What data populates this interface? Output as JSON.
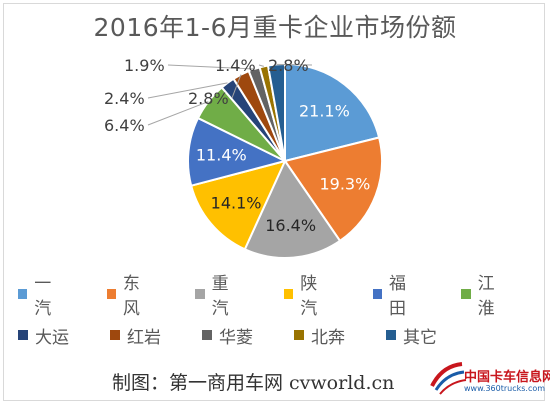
{
  "chart_data": {
    "type": "pie",
    "title": "2016年1-6月重卡企业市场份额",
    "categories": [
      "一汽",
      "东风",
      "重汽",
      "陕汽",
      "福田",
      "江淮",
      "大运",
      "红岩",
      "华菱",
      "北奔",
      "其它"
    ],
    "values": [
      21.1,
      19.3,
      16.4,
      14.1,
      11.4,
      6.4,
      2.4,
      2.8,
      1.9,
      1.4,
      2.8
    ],
    "value_labels": [
      "21.1%",
      "19.3%",
      "16.4%",
      "14.1%",
      "11.4%",
      "6.4%",
      "2.4%",
      "2.8%",
      "1.9%",
      "1.4%",
      "2.8%"
    ],
    "colors": [
      "#5b9bd5",
      "#ed7d31",
      "#a5a5a5",
      "#ffc000",
      "#4472c4",
      "#70ad47",
      "#264478",
      "#9e480e",
      "#636363",
      "#997300",
      "#255e91"
    ],
    "legend_position": "bottom"
  },
  "credit": "制图：第一商用车网 cvworld.cn",
  "watermark": {
    "main": "中国卡车信息网",
    "sub": "www.360trucks.com"
  }
}
